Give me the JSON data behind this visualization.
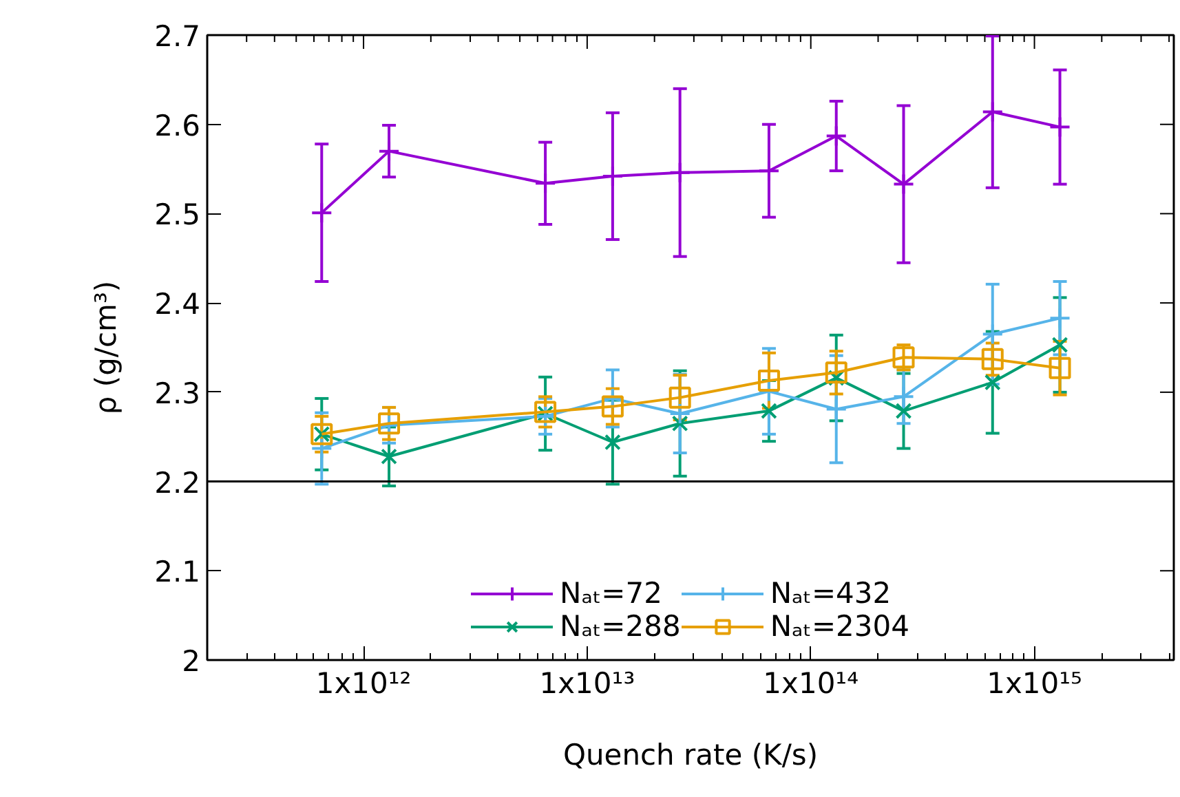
{
  "chart_data": {
    "type": "line",
    "xlabel": "Quench rate (K/s)",
    "ylabel": "ρ (g/cm³)",
    "x": [
      650000000000.0,
      1300000000000.0,
      6500000000000.0,
      13000000000000.0,
      26000000000000.0,
      65000000000000.0,
      130000000000000.0,
      260000000000000.0,
      650000000000000.0,
      1300000000000000.0
    ],
    "series": [
      {
        "name": "Nₐₜ=72",
        "color": "#9400d3",
        "marker": "cross",
        "values": [
          2.501,
          2.57,
          2.534,
          2.542,
          2.546,
          2.548,
          2.587,
          2.533,
          2.614,
          2.597
        ],
        "errors": [
          0.077,
          0.029,
          0.046,
          0.071,
          0.094,
          0.052,
          0.039,
          0.088,
          0.085,
          0.064
        ]
      },
      {
        "name": "Nₐₜ=288",
        "color": "#009e73",
        "marker": "x",
        "values": [
          2.253,
          2.228,
          2.276,
          2.244,
          2.265,
          2.279,
          2.316,
          2.279,
          2.311,
          2.353
        ],
        "errors": [
          0.04,
          0.033,
          0.041,
          0.047,
          0.059,
          0.034,
          0.048,
          0.042,
          0.057,
          0.053
        ]
      },
      {
        "name": "Nₐₜ=432",
        "color": "#56b4e9",
        "marker": "cross",
        "values": [
          2.237,
          2.263,
          2.273,
          2.293,
          2.276,
          2.301,
          2.281,
          2.295,
          2.365,
          2.383
        ],
        "errors": [
          0.04,
          0.02,
          0.02,
          0.032,
          0.044,
          0.048,
          0.06,
          0.03,
          0.056,
          0.041
        ]
      },
      {
        "name": "Nₐₜ=2304",
        "color": "#e69f00",
        "marker": "square",
        "values": [
          2.253,
          2.265,
          2.278,
          2.284,
          2.294,
          2.313,
          2.322,
          2.339,
          2.337,
          2.327
        ],
        "errors": [
          0.02,
          0.018,
          0.017,
          0.02,
          0.025,
          0.031,
          0.024,
          0.014,
          0.018,
          0.03
        ]
      }
    ],
    "log": "x",
    "xlim": [
      200000000000.0,
      4200000000000000.0
    ],
    "ylim": [
      2,
      2.7
    ],
    "xticks": [
      {
        "value": 1000000000000.0,
        "label": "1x10¹²"
      },
      {
        "value": 10000000000000.0,
        "label": "1x10¹³"
      },
      {
        "value": 100000000000000.0,
        "label": "1x10¹⁴"
      },
      {
        "value": 1000000000000000.0,
        "label": "1x10¹⁵"
      }
    ],
    "yticks": [
      2,
      2.1,
      2.2,
      2.3,
      2.4,
      2.5,
      2.6,
      2.7
    ],
    "ref_lines": [
      {
        "axis": "y",
        "value": 2.2,
        "color": "#000000"
      }
    ],
    "grid": false,
    "legend": "bottom"
  }
}
